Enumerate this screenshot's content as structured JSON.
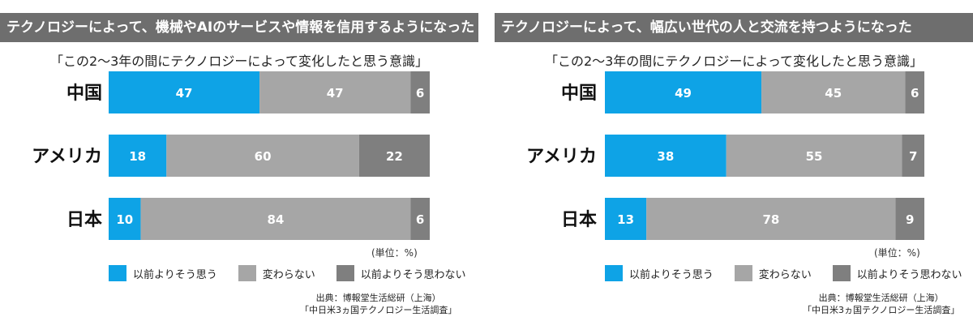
{
  "colors": {
    "header_bg": "#6e6e6e",
    "series": [
      "#0ea3e6",
      "#a6a6a6",
      "#7f7f7f"
    ]
  },
  "panels": [
    {
      "header": "テクノロジーによって、機械やAIのサービスや情報を信用するようになった",
      "subtitle": "「この2～3年の間にテクノロジーによって変化したと思う意識」",
      "unit": "(単位：%)",
      "legend": [
        "以前よりそう思う",
        "変わらない",
        "以前よりそう思わない"
      ],
      "source_line1": "出典：博報堂生活総研（上海）",
      "source_line2": "「中日米3ヵ国テクノロジー生活調査」"
    },
    {
      "header": "テクノロジーによって、幅広い世代の人と交流を持つようになった",
      "subtitle": "「この2～3年の間にテクノロジーによって変化したと思う意識」",
      "unit": "(単位：%)",
      "legend": [
        "以前よりそう思う",
        "変わらない",
        "以前よりそう思わない"
      ],
      "source_line1": "出典：博報堂生活総研（上海）",
      "source_line2": "「中日米3ヵ国テクノロジー生活調査」"
    }
  ],
  "chart_data": [
    {
      "type": "bar",
      "orientation": "horizontal",
      "stacked": true,
      "categories": [
        "中国",
        "アメリカ",
        "日本"
      ],
      "series": [
        {
          "name": "以前よりそう思う",
          "values": [
            47,
            18,
            10
          ],
          "color": "#0ea3e6"
        },
        {
          "name": "変わらない",
          "values": [
            47,
            60,
            84
          ],
          "color": "#a6a6a6"
        },
        {
          "name": "以前よりそう思わない",
          "values": [
            6,
            22,
            6
          ],
          "color": "#7f7f7f"
        }
      ],
      "title": "「この2～3年の間にテクノロジーによって変化したと思う意識」",
      "xlim": [
        0,
        100
      ],
      "grid": false,
      "legend_position": "bottom"
    },
    {
      "type": "bar",
      "orientation": "horizontal",
      "stacked": true,
      "categories": [
        "中国",
        "アメリカ",
        "日本"
      ],
      "series": [
        {
          "name": "以前よりそう思う",
          "values": [
            49,
            38,
            13
          ],
          "color": "#0ea3e6"
        },
        {
          "name": "変わらない",
          "values": [
            45,
            55,
            78
          ],
          "color": "#a6a6a6"
        },
        {
          "name": "以前よりそう思わない",
          "values": [
            6,
            7,
            9
          ],
          "color": "#7f7f7f"
        }
      ],
      "title": "「この2～3年の間にテクノロジーによって変化したと思う意識」",
      "xlim": [
        0,
        100
      ],
      "grid": false,
      "legend_position": "bottom"
    }
  ]
}
